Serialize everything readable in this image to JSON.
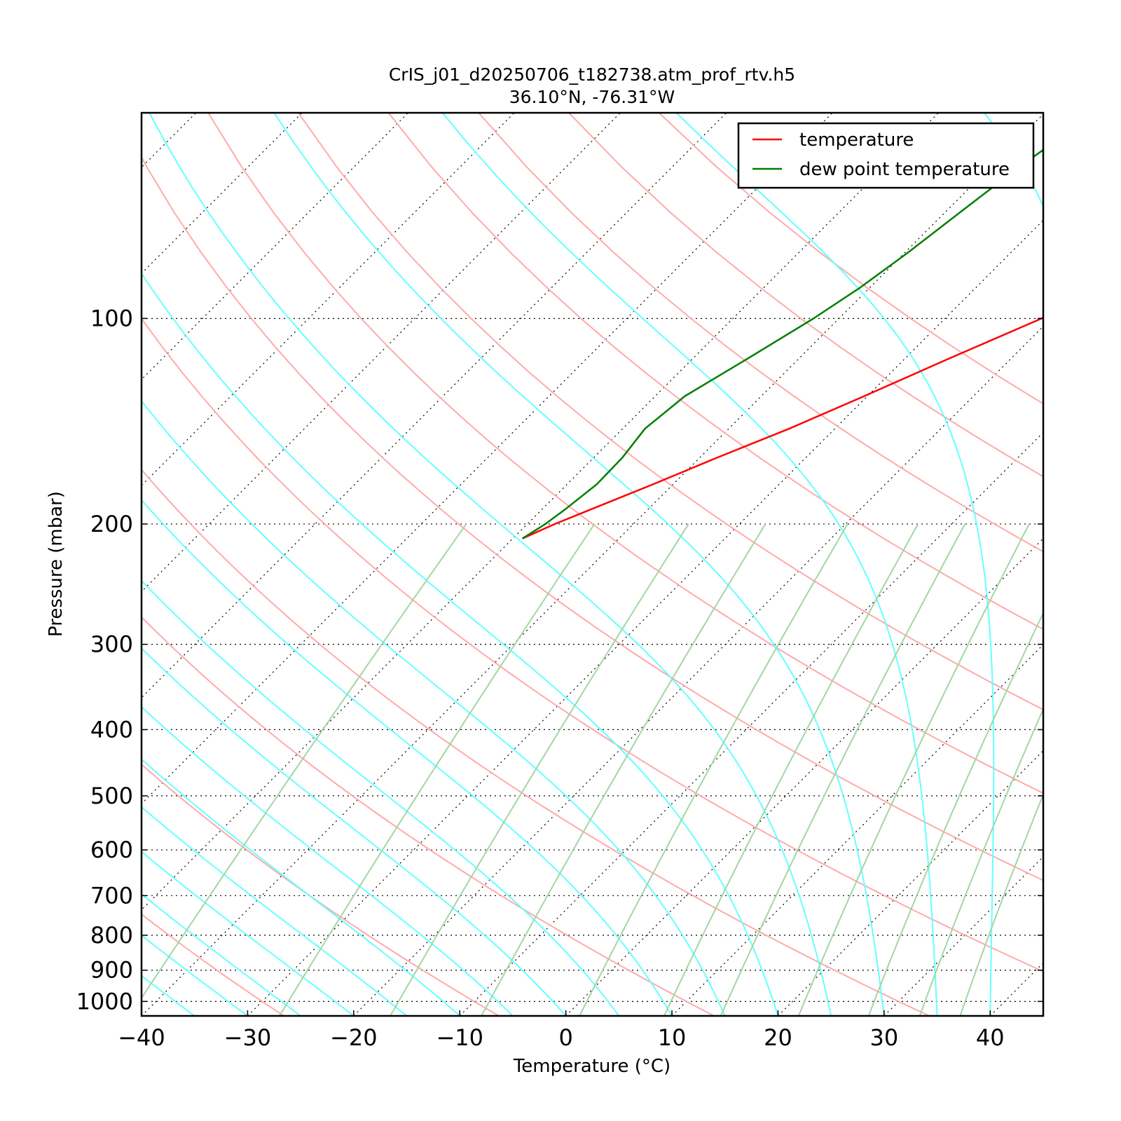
{
  "chart_data": {
    "type": "line",
    "title_line1": "CrIS_j01_d20250706_t182738.atm_prof_rtv.h5",
    "title_line2": "36.10°N, -76.31°W",
    "xlabel": "Temperature (°C)",
    "ylabel": "Pressure (mbar)",
    "xlim": [
      -40,
      45
    ],
    "ylim": [
      1050,
      50
    ],
    "yscale": "log",
    "skew": true,
    "x_ticks": [
      "−40",
      "−30",
      "−20",
      "−10",
      "0",
      "10",
      "20",
      "30",
      "40"
    ],
    "x_tick_values": [
      -40,
      -30,
      -20,
      -10,
      0,
      10,
      20,
      30,
      40
    ],
    "y_ticks": [
      "100",
      "200",
      "300",
      "400",
      "500",
      "600",
      "700",
      "800",
      "900",
      "1000"
    ],
    "y_tick_values": [
      100,
      200,
      300,
      400,
      500,
      600,
      700,
      800,
      900,
      1000
    ],
    "grid": true,
    "legend_position": "top-right",
    "series": [
      {
        "name": "temperature",
        "color": "#ff0000",
        "points": [
          [
            1.7,
            50
          ],
          [
            -1.0,
            60
          ],
          [
            -5.5,
            70
          ],
          [
            -10.0,
            80
          ],
          [
            -16.2,
            90
          ],
          [
            -20.9,
            100
          ],
          [
            -26.0,
            115
          ],
          [
            -30.3,
            130
          ],
          [
            -34.3,
            145
          ],
          [
            -38.4,
            160
          ],
          [
            -41.9,
            175
          ],
          [
            -45.3,
            190
          ],
          [
            -47.4,
            200
          ],
          [
            -49.1,
            210
          ]
        ]
      },
      {
        "name": "dew point temperature",
        "color": "#007f00",
        "points": [
          [
            -35.2,
            50
          ],
          [
            -37.3,
            60
          ],
          [
            -38.6,
            70
          ],
          [
            -39.7,
            80
          ],
          [
            -40.9,
            90
          ],
          [
            -42.4,
            100
          ],
          [
            -44.9,
            115
          ],
          [
            -47.2,
            130
          ],
          [
            -47.9,
            145
          ],
          [
            -47.3,
            160
          ],
          [
            -47.2,
            175
          ],
          [
            -47.8,
            190
          ],
          [
            -48.3,
            200
          ],
          [
            -49.1,
            210
          ]
        ]
      }
    ]
  },
  "colors": {
    "isotherm_grid": "#000000",
    "dry_adiabats": "#ffaaaa",
    "moist_adiabats": "#66ffff",
    "mixing_ratio": "#a3d6a3"
  }
}
